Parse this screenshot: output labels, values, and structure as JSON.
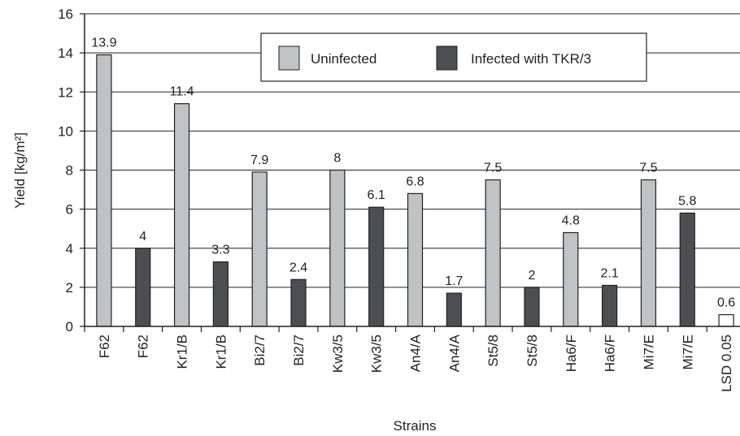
{
  "chart_data": {
    "type": "bar",
    "title": "",
    "xlabel": "Strains",
    "ylabel": "Yield [kg/m²]",
    "ylim": [
      0,
      16
    ],
    "yticks": [
      0,
      2,
      4,
      6,
      8,
      10,
      12,
      14,
      16
    ],
    "grid": "horizontal",
    "legend_position": "top-right",
    "legend": [
      {
        "label": "Uninfected",
        "color": "#c0c2c3"
      },
      {
        "label": "Infected with TKR/3",
        "color": "#4d4e52"
      }
    ],
    "colors": {
      "uninfected": "#c0c2c3",
      "infected": "#4d4e52",
      "lsd": "#ffffff"
    },
    "bars": [
      {
        "category": "F62",
        "value": 13.9,
        "label": "13.9",
        "group": "uninfected"
      },
      {
        "category": "F62",
        "value": 4,
        "label": "4",
        "group": "infected"
      },
      {
        "category": "Kr1/B",
        "value": 11.4,
        "label": "11.4",
        "group": "uninfected"
      },
      {
        "category": "Kr1/B",
        "value": 3.3,
        "label": "3.3",
        "group": "infected"
      },
      {
        "category": "Bi2/7",
        "value": 7.9,
        "label": "7.9",
        "group": "uninfected"
      },
      {
        "category": "Bi2/7",
        "value": 2.4,
        "label": "2.4",
        "group": "infected"
      },
      {
        "category": "Kw3/5",
        "value": 8,
        "label": "8",
        "group": "uninfected"
      },
      {
        "category": "Kw3/5",
        "value": 6.1,
        "label": "6.1",
        "group": "infected"
      },
      {
        "category": "An4/A",
        "value": 6.8,
        "label": "6.8",
        "group": "uninfected"
      },
      {
        "category": "An4/A",
        "value": 1.7,
        "label": "1.7",
        "group": "infected"
      },
      {
        "category": "St5/8",
        "value": 7.5,
        "label": "7.5",
        "group": "uninfected"
      },
      {
        "category": "St5/8",
        "value": 2,
        "label": "2",
        "group": "infected"
      },
      {
        "category": "Ha6/F",
        "value": 4.8,
        "label": "4.8",
        "group": "uninfected"
      },
      {
        "category": "Ha6/F",
        "value": 2.1,
        "label": "2.1",
        "group": "infected"
      },
      {
        "category": "Mi7/E",
        "value": 7.5,
        "label": "7.5",
        "group": "uninfected"
      },
      {
        "category": "Mi7/E",
        "value": 5.8,
        "label": "5.8",
        "group": "infected"
      },
      {
        "category": "LSD 0.05",
        "value": 0.6,
        "label": "0.6",
        "group": "lsd"
      }
    ]
  }
}
